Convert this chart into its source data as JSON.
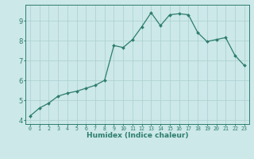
{
  "x": [
    0,
    1,
    2,
    3,
    4,
    5,
    6,
    7,
    8,
    9,
    10,
    11,
    12,
    13,
    14,
    15,
    16,
    17,
    18,
    19,
    20,
    21,
    22,
    23
  ],
  "y": [
    4.2,
    4.6,
    4.85,
    5.2,
    5.35,
    5.45,
    5.6,
    5.75,
    6.0,
    7.75,
    7.65,
    8.05,
    8.7,
    9.4,
    8.75,
    9.3,
    9.35,
    9.3,
    8.4,
    7.95,
    8.05,
    8.15,
    7.25,
    6.75
  ],
  "line_color": "#2d7d6e",
  "marker": "D",
  "marker_size": 2.0,
  "line_width": 0.9,
  "bg_color": "#cce8e8",
  "grid_color": "#aacfcf",
  "tick_color": "#2d7d6e",
  "xlabel": "Humidex (Indice chaleur)",
  "xlabel_fontsize": 6.5,
  "tick_fontsize_x": 4.8,
  "tick_fontsize_y": 6.0,
  "ylim": [
    3.8,
    9.8
  ],
  "xlim": [
    -0.5,
    23.5
  ],
  "yticks": [
    4,
    5,
    6,
    7,
    8,
    9
  ],
  "xticks": [
    0,
    1,
    2,
    3,
    4,
    5,
    6,
    7,
    8,
    9,
    10,
    11,
    12,
    13,
    14,
    15,
    16,
    17,
    18,
    19,
    20,
    21,
    22,
    23
  ],
  "xtick_labels": [
    "0",
    "1",
    "2",
    "3",
    "4",
    "5",
    "6",
    "7",
    "8",
    "9",
    "10",
    "11",
    "12",
    "13",
    "14",
    "15",
    "16",
    "17",
    "18",
    "19",
    "20",
    "21",
    "22",
    "23"
  ]
}
